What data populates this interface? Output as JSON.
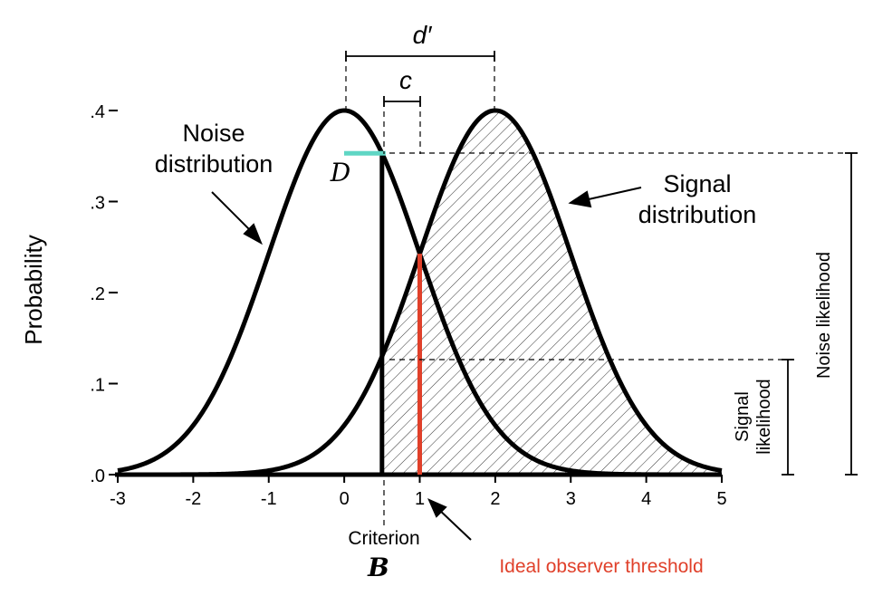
{
  "chart_data": {
    "type": "line",
    "xlim": [
      -3,
      5
    ],
    "ylim": [
      0,
      0.4
    ],
    "x_ticks": [
      -3,
      -2,
      -1,
      0,
      1,
      2,
      3,
      4,
      5
    ],
    "x_tick_labels": [
      "-3",
      "-2",
      "-1",
      "0",
      "1",
      "2",
      "3",
      "4",
      "5"
    ],
    "y_ticks": [
      0,
      0.1,
      0.2,
      0.3,
      0.4
    ],
    "y_tick_labels": [
      ".0",
      ".1",
      ".2",
      ".3",
      ".4"
    ],
    "ylabel": "Probability",
    "grid": false,
    "series": [
      {
        "label": "Noise distribution",
        "mean": 0,
        "sd": 1
      },
      {
        "label": "Signal distribution",
        "mean": 2,
        "sd": 1
      }
    ],
    "criterion_x": 0.5,
    "ideal_threshold_x": 1,
    "annotations": {
      "d_prime": "d′",
      "c": "c",
      "D": "D",
      "B": "B",
      "criterion": "Criterion",
      "ideal_observer": "Ideal observer threshold",
      "signal_likelihood_line1": "Signal",
      "signal_likelihood_line2": "likelihood",
      "noise_likelihood": "Noise likelihood",
      "noise_label_line1": "Noise",
      "noise_label_line2": "distribution",
      "signal_label_line1": "Signal",
      "signal_label_line2": "distribution"
    },
    "colors": {
      "curve": "#000000",
      "ideal_threshold": "#e0402a",
      "D_marker": "#5fd6c4",
      "hatch": "#000000"
    }
  }
}
